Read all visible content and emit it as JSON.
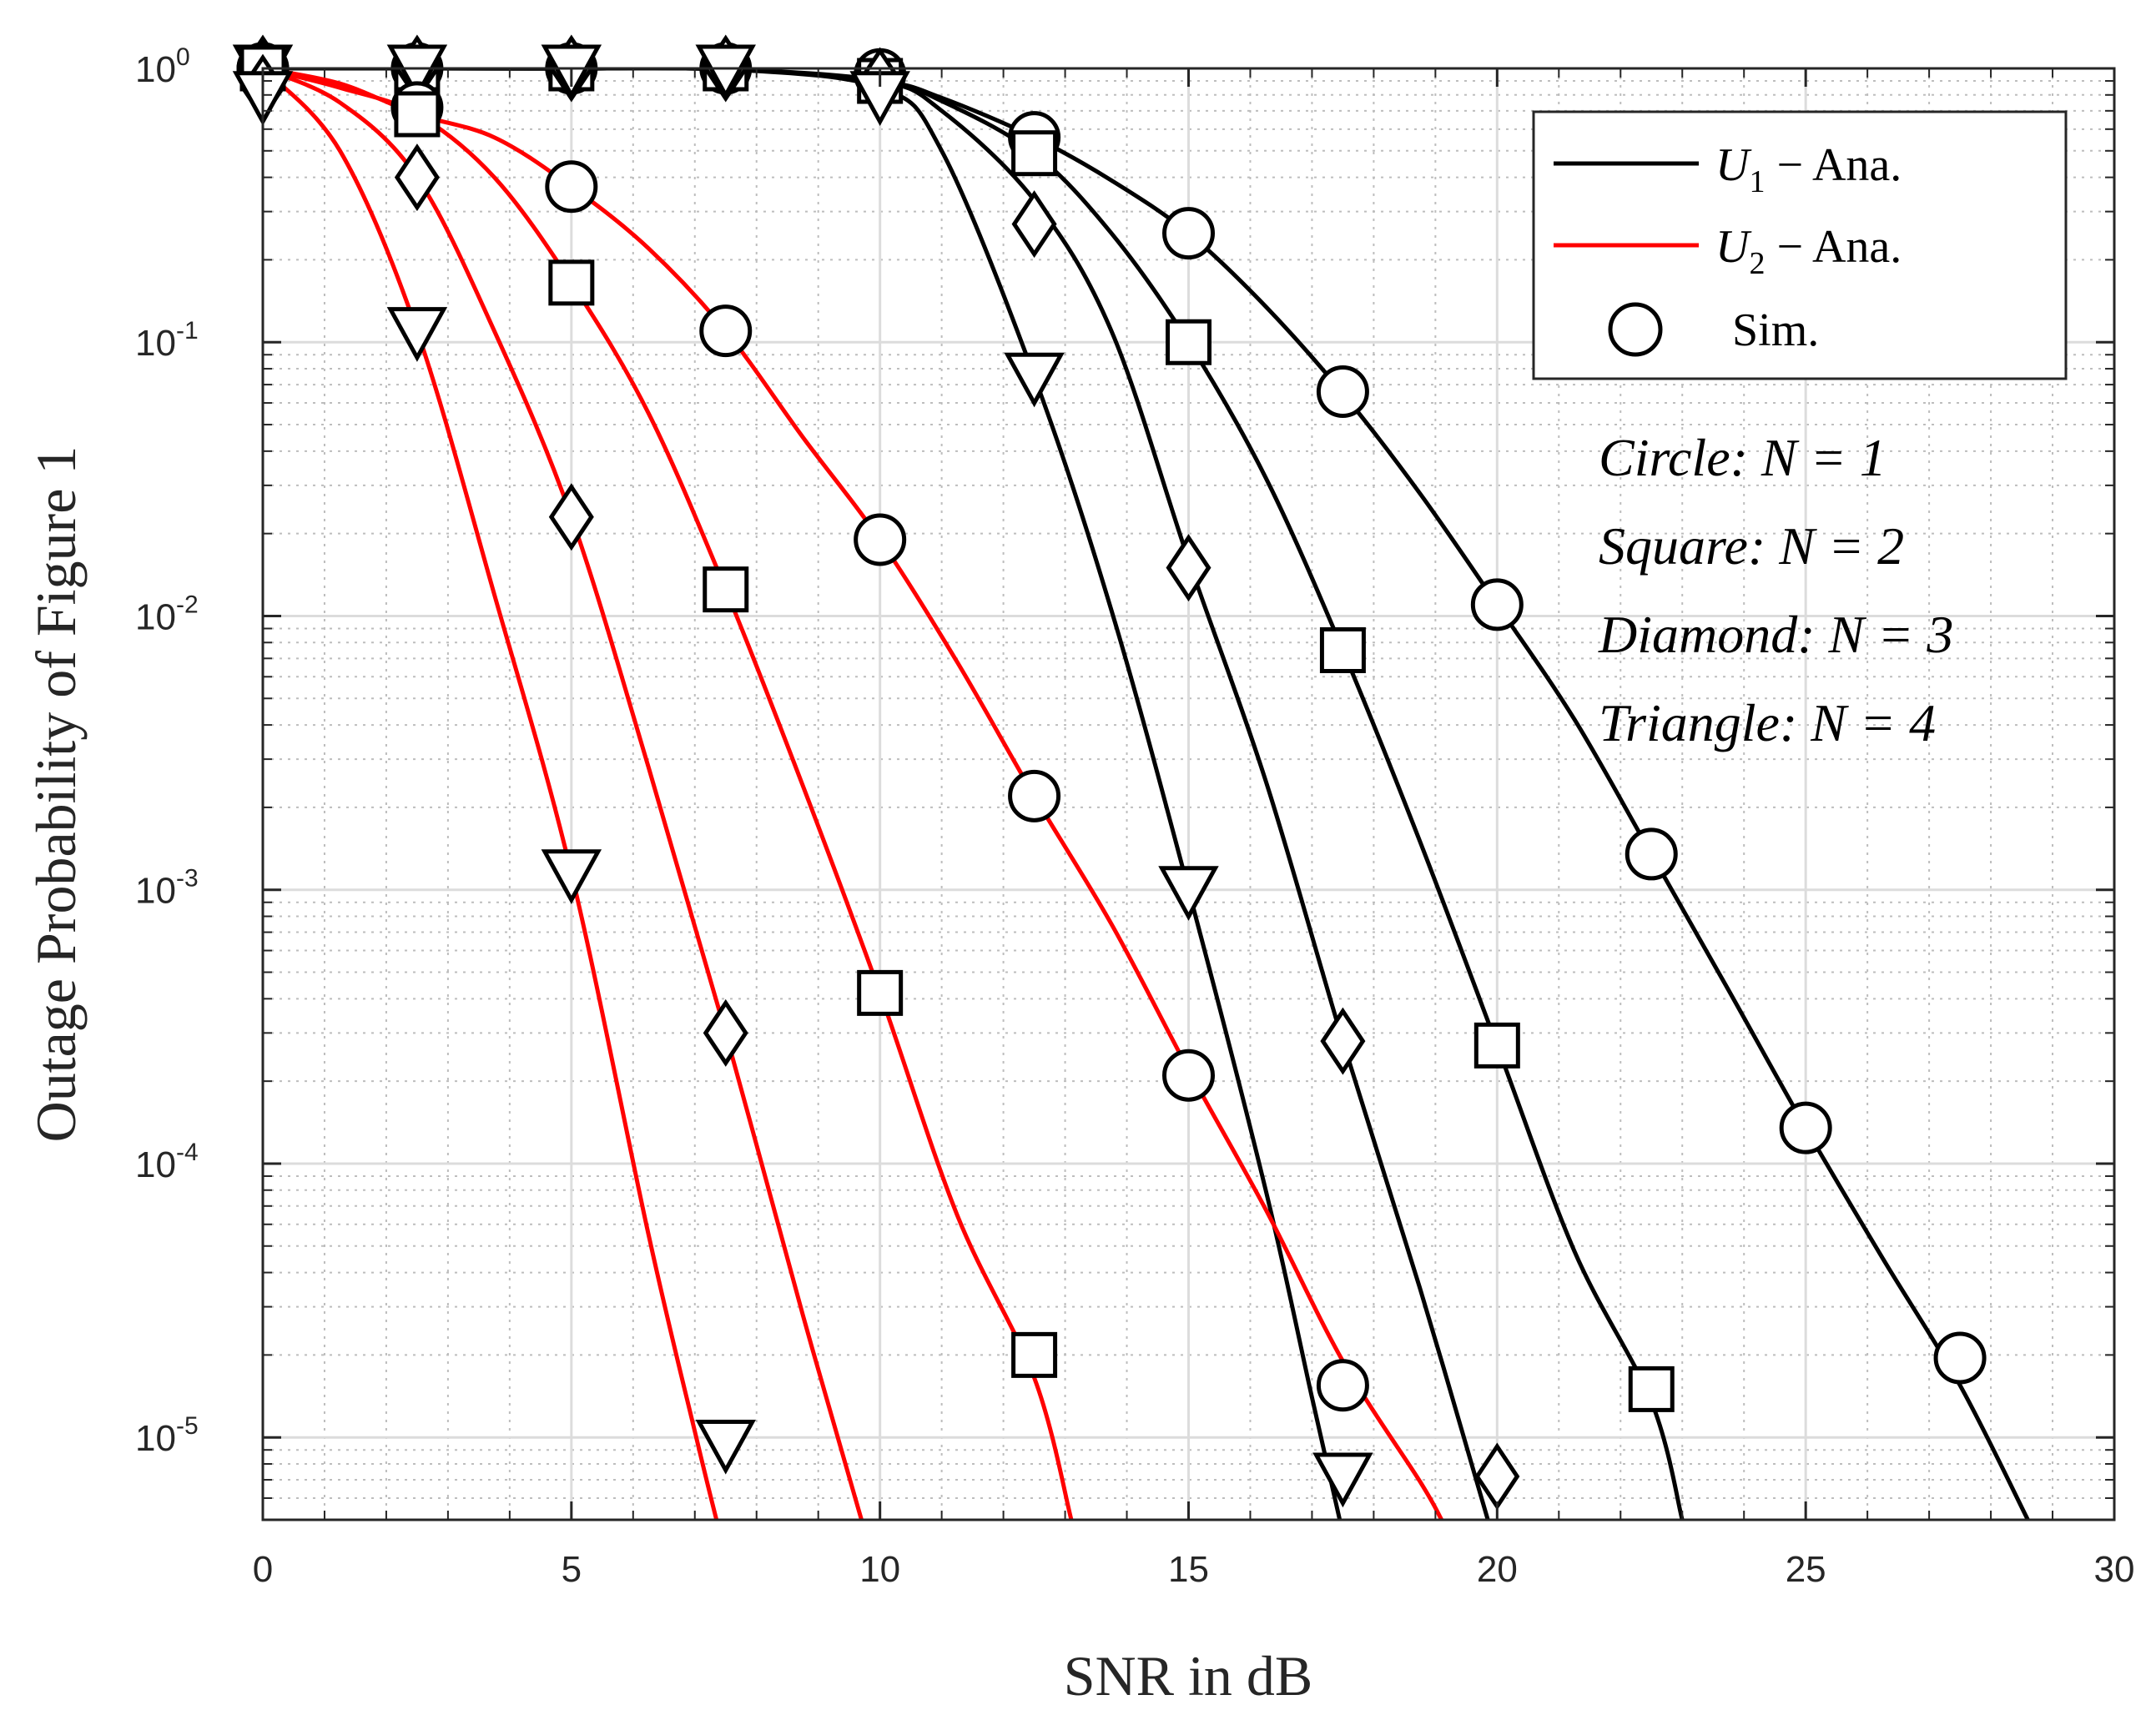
{
  "chart_data": {
    "type": "line",
    "title": "",
    "xlabel": "SNR in dB",
    "ylabel": "Outage Probability of Figure 1",
    "xlim": [
      0,
      30
    ],
    "ylim": [
      5e-06,
      1
    ],
    "yscale": "log",
    "grid": true,
    "minor_grid": true,
    "x_ticks": [
      0,
      5,
      10,
      15,
      20,
      25,
      30
    ],
    "x_tick_labels": [
      "0",
      "5",
      "10",
      "15",
      "20",
      "25",
      "30"
    ],
    "y_ticks": [
      1e-05,
      0.0001,
      0.001,
      0.01,
      0.1,
      1
    ],
    "y_tick_labels": [
      {
        "base": "10",
        "exp": "-5"
      },
      {
        "base": "10",
        "exp": "-4"
      },
      {
        "base": "10",
        "exp": "-3"
      },
      {
        "base": "10",
        "exp": "-2"
      },
      {
        "base": "10",
        "exp": "-1"
      },
      {
        "base": "10",
        "exp": "0"
      }
    ],
    "legend": {
      "placement": "top-right",
      "entries": [
        {
          "label_main": "U",
          "label_sub": "1",
          "label_rest": " − Ana.",
          "kind": "line",
          "color": "#000000"
        },
        {
          "label_main": "U",
          "label_sub": "2",
          "label_rest": " − Ana.",
          "kind": "line",
          "color": "#ff0000"
        },
        {
          "label_main": "Sim.",
          "label_sub": "",
          "label_rest": "",
          "kind": "marker",
          "color": "#000000"
        }
      ]
    },
    "annotations": [
      "Circle: N = 1",
      "Square: N = 2",
      "Diamond: N = 3",
      "Triangle: N = 4"
    ],
    "series": [
      {
        "name": "U1 Ana. N=1",
        "user": "U1",
        "N": 1,
        "color": "#000000",
        "x": [
          0,
          2.5,
          5,
          7.5,
          10,
          11,
          12.5,
          13.75,
          15,
          16.25,
          17.5,
          18.75,
          20,
          21.25,
          22.5,
          23.75,
          25,
          26.25,
          27.5,
          28.6
        ],
        "y": [
          1,
          1,
          0.999,
          0.993,
          0.9,
          0.78,
          0.56,
          0.39,
          0.25,
          0.135,
          0.065,
          0.028,
          0.011,
          0.0042,
          0.00135,
          0.00043,
          0.000135,
          4.5e-05,
          1.55e-05,
          5e-06
        ]
      },
      {
        "name": "U1 Ana. N=2",
        "user": "U1",
        "N": 2,
        "color": "#000000",
        "x": [
          0,
          2.5,
          5,
          7.5,
          10,
          11,
          12.5,
          13.75,
          15,
          16.25,
          17.5,
          18.75,
          20,
          21.25,
          22.5,
          23
        ],
        "y": [
          1,
          1,
          0.999,
          0.993,
          0.9,
          0.76,
          0.49,
          0.25,
          0.1,
          0.032,
          0.0075,
          0.0015,
          0.00027,
          4.8e-05,
          1.35e-05,
          5e-06
        ]
      },
      {
        "name": "U1 Ana. N=3",
        "user": "U1",
        "N": 3,
        "color": "#000000",
        "x": [
          0,
          2.5,
          5,
          7.5,
          10,
          11,
          12.5,
          13.75,
          15,
          16.25,
          17.5,
          18.75,
          19.85
        ],
        "y": [
          1,
          1,
          0.999,
          0.993,
          0.9,
          0.7,
          0.33,
          0.11,
          0.016,
          0.0025,
          0.00028,
          3.5e-05,
          5e-06
        ]
      },
      {
        "name": "U1 Ana. N=4",
        "user": "U1",
        "N": 4,
        "color": "#000000",
        "x": [
          0,
          2.5,
          5,
          7.5,
          10,
          11,
          12.5,
          13.75,
          15,
          16.25,
          17,
          17.45
        ],
        "y": [
          1,
          1,
          0.999,
          0.993,
          0.85,
          0.5,
          0.075,
          0.0105,
          0.001,
          8e-05,
          1.4e-05,
          5e-06
        ]
      },
      {
        "name": "U2 Ana. N=1",
        "user": "U2",
        "N": 1,
        "color": "#ff0000",
        "x": [
          0,
          1.25,
          2.5,
          3.75,
          5,
          6.25,
          7.5,
          8.75,
          10,
          11.25,
          12.5,
          13.75,
          15,
          16.25,
          17.5,
          18.75,
          19.1
        ],
        "y": [
          1,
          0.88,
          0.68,
          0.56,
          0.37,
          0.22,
          0.11,
          0.045,
          0.019,
          0.0068,
          0.0022,
          0.00075,
          0.00022,
          6.8e-05,
          1.9e-05,
          6.9e-06,
          5e-06
        ]
      },
      {
        "name": "U2 Ana. N=2",
        "user": "U2",
        "N": 2,
        "color": "#ff0000",
        "x": [
          0,
          1.25,
          2.5,
          3.75,
          5,
          6.25,
          7.5,
          8.75,
          10,
          11.25,
          12.5,
          13.1
        ],
        "y": [
          1,
          0.85,
          0.68,
          0.4,
          0.165,
          0.055,
          0.0125,
          0.0024,
          0.00042,
          6.5e-05,
          1.65e-05,
          5e-06
        ]
      },
      {
        "name": "U2 Ana. N=3",
        "user": "U2",
        "N": 3,
        "color": "#ff0000",
        "x": [
          0,
          1.25,
          2.5,
          3.75,
          5,
          6.25,
          7.5,
          8.75,
          9.7
        ],
        "y": [
          1,
          0.75,
          0.4,
          0.11,
          0.023,
          0.0028,
          0.0003,
          2.8e-05,
          5e-06
        ]
      },
      {
        "name": "U2 Ana. N=4",
        "user": "U2",
        "N": 4,
        "color": "#ff0000",
        "x": [
          0,
          1.25,
          2.5,
          3.75,
          5,
          6.25,
          7,
          7.35
        ],
        "y": [
          1,
          0.5,
          0.11,
          0.012,
          0.00115,
          5.5e-05,
          1.05e-05,
          5e-06
        ]
      }
    ],
    "markers": [
      {
        "name": "U1 Sim. N=1",
        "shape": "circle",
        "x": [
          0,
          2.5,
          5,
          7.5,
          10,
          12.5,
          15,
          17.5,
          20,
          22.5,
          25,
          27.5
        ],
        "y": [
          1,
          1,
          1,
          1,
          0.95,
          0.56,
          0.25,
          0.066,
          0.011,
          0.00135,
          0.000135,
          1.95e-05
        ]
      },
      {
        "name": "U1 Sim. N=2",
        "shape": "square",
        "x": [
          0,
          2.5,
          5,
          7.5,
          10,
          12.5,
          15,
          17.5,
          20,
          22.5
        ],
        "y": [
          1,
          1,
          1,
          1,
          0.9,
          0.49,
          0.1,
          0.0075,
          0.00027,
          1.5e-05
        ]
      },
      {
        "name": "U1 Sim. N=3",
        "shape": "diamond",
        "x": [
          0,
          2.5,
          5,
          7.5,
          10,
          12.5,
          15,
          17.5,
          20
        ],
        "y": [
          1,
          1,
          1,
          1,
          0.9,
          0.27,
          0.015,
          0.00028,
          7.2e-06
        ]
      },
      {
        "name": "U1 Sim. N=4",
        "shape": "triangle",
        "x": [
          0,
          2.5,
          5,
          7.5,
          10,
          12.5,
          15,
          17.5
        ],
        "y": [
          1,
          1,
          1,
          1,
          0.8,
          0.075,
          0.001,
          7.2e-06
        ]
      },
      {
        "name": "U2 Sim. N=1",
        "shape": "circle",
        "x": [
          0,
          2.5,
          5,
          7.5,
          10,
          12.5,
          15,
          17.5
        ],
        "y": [
          1,
          0.72,
          0.37,
          0.11,
          0.019,
          0.0022,
          0.00021,
          1.55e-05
        ]
      },
      {
        "name": "U2 Sim. N=2",
        "shape": "square",
        "x": [
          0,
          2.5,
          5,
          7.5,
          10,
          12.5
        ],
        "y": [
          1,
          0.68,
          0.165,
          0.0125,
          0.00042,
          2e-05
        ]
      },
      {
        "name": "U2 Sim. N=3",
        "shape": "diamond",
        "x": [
          0,
          2.5,
          5,
          7.5
        ],
        "y": [
          0.85,
          0.4,
          0.023,
          0.0003
        ]
      },
      {
        "name": "U2 Sim. N=4",
        "shape": "triangle",
        "x": [
          0,
          2.5,
          5,
          7.5
        ],
        "y": [
          0.8,
          0.11,
          0.00115,
          9.5e-06
        ]
      }
    ]
  }
}
